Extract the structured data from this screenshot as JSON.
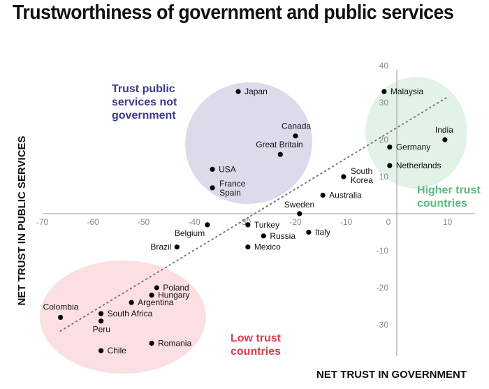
{
  "chart_data": {
    "type": "scatter",
    "title": "Trustworthiness of government and public services",
    "xlabel": "NET TRUST IN GOVERNMENT",
    "ylabel": "NET TRUST IN PUBLIC SERVICES",
    "xlim": [
      -70,
      10
    ],
    "ylim": [
      -40,
      40
    ],
    "xticks": [
      -70,
      -60,
      -50,
      -40,
      -30,
      -20,
      -10,
      0,
      10
    ],
    "yticks": [
      40,
      30,
      20,
      10,
      -10,
      -20,
      -30
    ],
    "grid": false,
    "trendline": {
      "style": "dotted",
      "from": [
        -66.4,
        -31.7
      ],
      "to": [
        10,
        31.5
      ]
    },
    "groups": [
      {
        "label": [
          "Trust public",
          "services not",
          "government"
        ],
        "color": "#3d3a8c",
        "fill": "#dcdaeb"
      },
      {
        "label": [
          "Higher trust",
          "countries"
        ],
        "color": "#5db77f",
        "fill": "#e2f2e7"
      },
      {
        "label": [
          "Low trust",
          "countries"
        ],
        "color": "#e0394c",
        "fill": "#fbdfe2"
      }
    ],
    "points": [
      {
        "name": "Japan",
        "x": -31.3,
        "y": 33
      },
      {
        "name": "Canada",
        "x": -20,
        "y": 21
      },
      {
        "name": "Great Britain",
        "x": -23,
        "y": 16
      },
      {
        "name": "USA",
        "x": -36.4,
        "y": 12
      },
      {
        "name": "France\nSpain",
        "x": -36.4,
        "y": 7
      },
      {
        "name": "Malaysia",
        "x": -2.5,
        "y": 33
      },
      {
        "name": "India",
        "x": 9.5,
        "y": 20
      },
      {
        "name": "Germany",
        "x": -1.4,
        "y": 18
      },
      {
        "name": "Netherlands",
        "x": -1.4,
        "y": 13
      },
      {
        "name": "South\nKorea",
        "x": -10.5,
        "y": 10
      },
      {
        "name": "Australia",
        "x": -14.6,
        "y": 5
      },
      {
        "name": "Sweden",
        "x": -19.2,
        "y": 0
      },
      {
        "name": "Belgium",
        "x": -37.4,
        "y": -3
      },
      {
        "name": "Turkey",
        "x": -29.4,
        "y": -3
      },
      {
        "name": "Russia",
        "x": -26.3,
        "y": -6
      },
      {
        "name": "Italy",
        "x": -17.4,
        "y": -5
      },
      {
        "name": "Brazil",
        "x": -43.4,
        "y": -9
      },
      {
        "name": "Mexico",
        "x": -29.4,
        "y": -9
      },
      {
        "name": "Poland",
        "x": -47.4,
        "y": -20
      },
      {
        "name": "Hungary",
        "x": -48.4,
        "y": -22
      },
      {
        "name": "Argentina",
        "x": -52.4,
        "y": -24
      },
      {
        "name": "South Africa",
        "x": -58.4,
        "y": -27
      },
      {
        "name": "Colombia",
        "x": -66.4,
        "y": -28
      },
      {
        "name": "Peru",
        "x": -58.4,
        "y": -29
      },
      {
        "name": "Romania",
        "x": -48.4,
        "y": -35
      },
      {
        "name": "Chile",
        "x": -58.4,
        "y": -37
      }
    ]
  }
}
